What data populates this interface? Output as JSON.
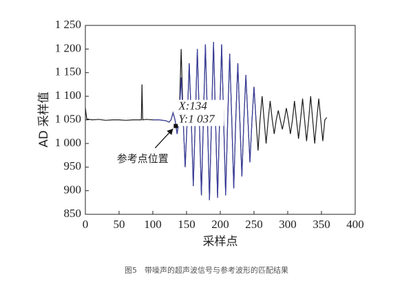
{
  "chart_data": {
    "type": "line",
    "y_label": "AD 采样值",
    "x_label": "采样点",
    "caption": "图5　带噪声的超声波信号与参考波形的匹配结果",
    "xlim": [
      0,
      400
    ],
    "xticks": [
      0,
      50,
      100,
      150,
      200,
      250,
      300,
      350,
      400
    ],
    "ylim": [
      850,
      1250
    ],
    "yticks": [
      850,
      900,
      950,
      {
        "value": 1000,
        "label": "1 000"
      },
      {
        "value": 1050,
        "label": "1 050"
      },
      {
        "value": 1100,
        "label": "1 100"
      },
      {
        "value": 1150,
        "label": "1 150"
      },
      {
        "value": 1200,
        "label": "1 200"
      },
      {
        "value": 1250,
        "label": "1 250"
      }
    ],
    "grid": false,
    "series": [
      {
        "color": "#1a1a1a",
        "x": [
          0,
          2,
          10,
          20,
          30,
          40,
          50,
          60,
          70,
          80,
          83,
          84,
          85,
          90,
          100,
          110,
          120,
          124,
          127,
          130,
          133,
          136,
          139,
          142,
          145,
          148,
          151,
          154,
          157,
          160,
          163,
          166,
          169,
          172,
          175,
          178,
          181,
          184,
          187,
          190,
          193,
          196,
          199,
          202,
          205,
          208,
          211,
          214,
          217,
          220,
          223,
          226,
          229,
          232,
          235,
          238,
          241,
          244,
          247,
          250,
          253,
          256,
          259,
          262,
          265,
          268,
          271,
          274,
          277,
          280,
          283,
          286,
          289,
          292,
          295,
          298,
          301,
          304,
          307,
          310,
          313,
          316,
          319,
          322,
          325,
          328,
          331,
          334,
          337,
          340,
          343,
          346,
          349,
          352,
          355,
          358
        ],
        "values": [
          1075,
          1052,
          1050,
          1051,
          1049,
          1050,
          1050,
          1049,
          1050,
          1050,
          1050,
          1125,
          1050,
          1051,
          1050,
          1050,
          1048,
          1045,
          1050,
          1065,
          1050,
          1020,
          1050,
          1200,
          1050,
          950,
          1050,
          1170,
          1050,
          910,
          1050,
          1200,
          1050,
          890,
          1050,
          1210,
          1050,
          880,
          1050,
          1215,
          1050,
          885,
          1050,
          1210,
          1050,
          890,
          1050,
          1190,
          1050,
          905,
          1050,
          1170,
          1050,
          930,
          1050,
          1145,
          1050,
          960,
          1050,
          1120,
          1050,
          985,
          1050,
          1100,
          1050,
          1000,
          1050,
          1090,
          1050,
          1020,
          1050,
          1070,
          1050,
          1030,
          1050,
          1075,
          1050,
          1020,
          1050,
          1090,
          1050,
          1010,
          1050,
          1095,
          1050,
          1005,
          1050,
          1100,
          1050,
          1000,
          1050,
          1095,
          1050,
          1005,
          1050,
          1055
        ]
      },
      {
        "color": "#3b3fa0",
        "x": [
          100,
          110,
          120,
          124,
          127,
          130,
          133,
          136,
          139,
          142,
          145,
          148,
          151,
          154,
          157,
          160,
          163,
          166,
          169,
          172,
          175,
          178,
          181,
          184,
          187,
          190,
          193,
          196,
          199,
          202,
          205,
          208,
          211,
          214,
          217,
          220,
          223,
          226,
          229,
          232,
          235,
          238,
          241,
          244,
          247,
          250,
          253
        ],
        "values": [
          1050,
          1050,
          1048,
          1045,
          1050,
          1065,
          1050,
          1020,
          1050,
          1140,
          1050,
          950,
          1050,
          1170,
          1050,
          910,
          1050,
          1200,
          1050,
          890,
          1050,
          1210,
          1050,
          880,
          1050,
          1215,
          1050,
          885,
          1050,
          1210,
          1050,
          890,
          1050,
          1190,
          1050,
          905,
          1050,
          1170,
          1050,
          930,
          1050,
          1145,
          1050,
          960,
          1050,
          1120,
          1050
        ]
      }
    ],
    "annotation": {
      "x": 134,
      "y": 1037,
      "labels": [
        "X:134",
        "Y:1 037"
      ],
      "pointer_text": "参考点位置"
    }
  }
}
